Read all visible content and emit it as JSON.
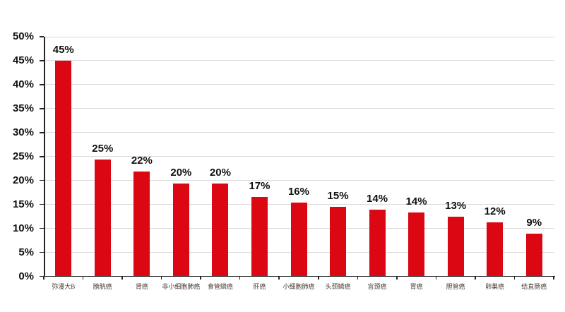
{
  "chart_data": {
    "type": "bar",
    "title": "",
    "xlabel": "",
    "ylabel": "",
    "categories": [
      "弥漫大B",
      "膀胱癌",
      "肾癌",
      "非小细胞肺癌",
      "食管鳞癌",
      "肝癌",
      "小细胞肺癌",
      "头颈鳞癌",
      "宫颈癌",
      "胃癌",
      "胆管癌",
      "卵巢癌",
      "结直肠癌"
    ],
    "values": [
      45,
      25,
      22,
      20,
      20,
      17,
      16,
      15,
      14,
      14,
      13,
      12,
      9
    ],
    "data_labels": [
      "45%",
      "25%",
      "22%",
      "20%",
      "20%",
      "17%",
      "16%",
      "15%",
      "14%",
      "14%",
      "13%",
      "12%",
      "9%"
    ],
    "bar_heights_pct": [
      45,
      24.4,
      21.8,
      19.4,
      19.4,
      16.5,
      15.4,
      14.5,
      13.9,
      13.4,
      12.4,
      11.3,
      8.9
    ],
    "y_tick_labels": [
      "0%",
      "5%",
      "10%",
      "15%",
      "20%",
      "25%",
      "30%",
      "35%",
      "40%",
      "45%",
      "50%"
    ],
    "ylim": [
      0,
      50
    ],
    "y_step": 5,
    "grid": true,
    "legend": false,
    "colors": {
      "bar": "#DB0712",
      "gridline": "#D9D9D9",
      "axis": "#262626",
      "value_label": "#111111",
      "category_label": "#4C3B33",
      "background": "#FFFFFF"
    }
  }
}
